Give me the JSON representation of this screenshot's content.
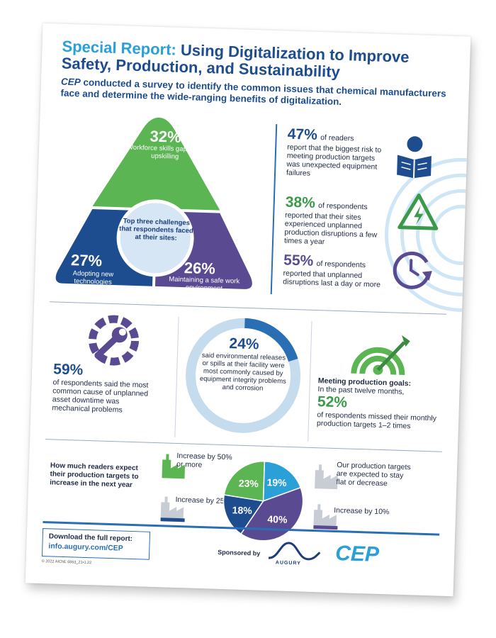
{
  "header": {
    "title_lead": "Special Report:",
    "title_rest": "Using Digitalization to Improve Safety, Production, and Sustainability",
    "subtitle_em": "CEP",
    "subtitle_rest": "conducted a survey to identify the common issues that chemical manufacturers face and determine the wide-ranging benefits of digitalization."
  },
  "challenges": {
    "center": "Top three challenges that respondents faced at their sites:",
    "top": {
      "pct": "32%",
      "label": "Workforce skills gaps and upskilling"
    },
    "left": {
      "pct": "27%",
      "label": "Adopting new technologies"
    },
    "right": {
      "pct": "26%",
      "label": "Maintaining a safe work environment"
    }
  },
  "stats_right": [
    {
      "pct": "47%",
      "text_first": "of readers",
      "text_rest": "report that the biggest risk to meeting production targets was unexpected equipment failures",
      "icon": "reading-person-icon"
    },
    {
      "pct": "38%",
      "text_first": "of respondents",
      "text_rest": "reported that their sites experienced unplanned production disruptions a few times a year",
      "icon": "warning-bolt-icon"
    },
    {
      "pct": "55%",
      "text_first": "of respondents",
      "text_rest": "reported that unplanned disruptions last a day or more",
      "icon": "clock-icon"
    }
  ],
  "mechanical": {
    "pct": "59%",
    "text": "of respondents said the most common cause of unplanned asset downtime was mechanical problems",
    "icon": "gear-wrench-icon"
  },
  "environmental": {
    "pct": "24%",
    "text": "said environmental releases or spills at their facility were most commonly caused by equipment integrity problems and corrosion"
  },
  "production_goals": {
    "heading": "Meeting production goals:",
    "intro": "In the past twelve months,",
    "pct": "52%",
    "text": "of respondents missed their monthly production targets 1–2 times",
    "icon": "target-icon"
  },
  "expectations": {
    "question": "How much readers expect their production targets to increase in the next year",
    "legend": [
      {
        "label": "Increase by 50% or more",
        "color": "#5ab552"
      },
      {
        "label": "Increase by 25%",
        "color": "#1d4c8f"
      },
      {
        "label": "Our production targets are expected to stay flat or decrease",
        "color": "#2a9fd8"
      },
      {
        "label": "Increase by 10%",
        "color": "#5a4a92"
      }
    ]
  },
  "chart_data": {
    "type": "pie",
    "title": "How much readers expect their production targets to increase in the next year",
    "slices": [
      {
        "label": "Our production targets are expected to stay flat or decrease",
        "value": 19,
        "display": "19%",
        "color": "#2a9fd8"
      },
      {
        "label": "Increase by 10%",
        "value": 40,
        "display": "40%",
        "color": "#5a4a92"
      },
      {
        "label": "Increase by 25%",
        "value": 18,
        "display": "18%",
        "color": "#1d4c8f"
      },
      {
        "label": "Increase by 50% or more",
        "value": 23,
        "display": "23%",
        "color": "#5ab552"
      }
    ]
  },
  "footer": {
    "download_label": "Download the full report:",
    "download_link": "info.augury.com/CEP",
    "copyright": "© 2022 AIChE 6863_21•1.22",
    "sponsored": "Sponsored by",
    "sponsor_name": "AUGURY",
    "brand": "CEP"
  },
  "colors": {
    "navy": "#1d4c8f",
    "blue": "#2a9fd8",
    "green": "#5ab552",
    "purple": "#5a4a92"
  }
}
